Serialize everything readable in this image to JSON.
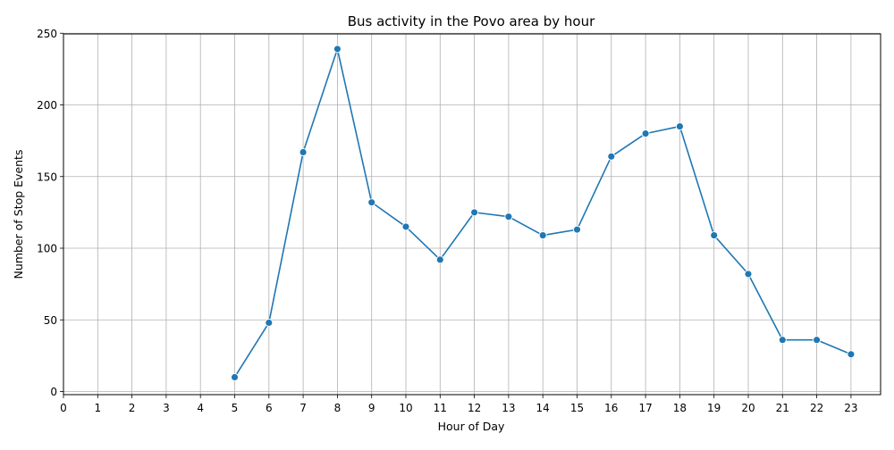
{
  "chart_data": {
    "type": "line",
    "title": "Bus activity in the Povo area by hour",
    "xlabel": "Hour of Day",
    "ylabel": "Number of Stop Events",
    "xlim": [
      0,
      24
    ],
    "ylim": [
      0,
      250
    ],
    "x_ticks": [
      0,
      1,
      2,
      3,
      4,
      5,
      6,
      7,
      8,
      9,
      10,
      11,
      12,
      13,
      14,
      15,
      16,
      17,
      18,
      19,
      20,
      21,
      22,
      23
    ],
    "y_ticks": [
      0,
      50,
      100,
      150,
      200,
      250
    ],
    "grid": true,
    "marker": "circle",
    "series": [
      {
        "color": "#1f77b4",
        "x": [
          5,
          6,
          7,
          8,
          9,
          10,
          11,
          12,
          13,
          14,
          15,
          16,
          17,
          18,
          19,
          20,
          21,
          22,
          23
        ],
        "y": [
          10,
          48,
          167,
          239,
          132,
          115,
          92,
          125,
          122,
          109,
          113,
          164,
          180,
          185,
          109,
          82,
          36,
          36,
          26
        ]
      }
    ]
  }
}
